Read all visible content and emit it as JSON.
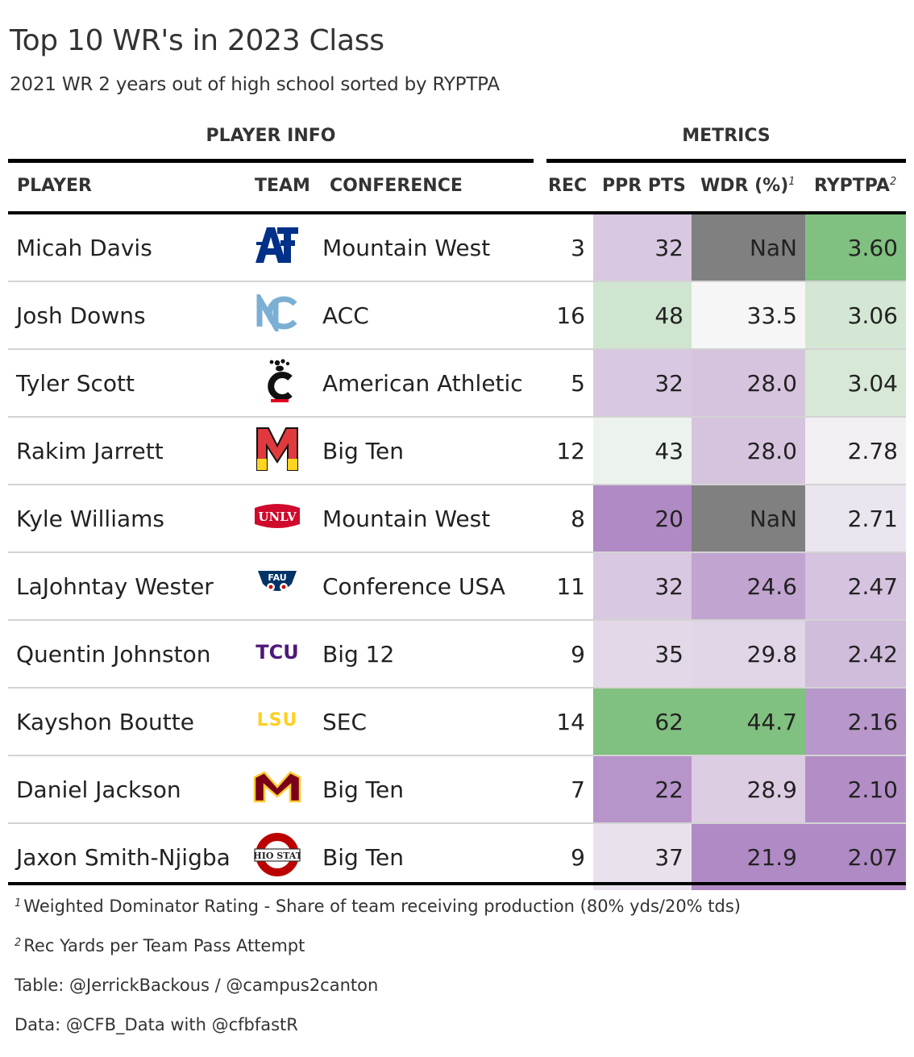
{
  "title": "Top 10 WR's in 2023 Class",
  "subtitle": "2021 WR 2 years out of high school sorted by RYPTPA",
  "spanners": {
    "player_info": "PLAYER INFO",
    "metrics": "METRICS"
  },
  "columns": {
    "player": "PLAYER",
    "team": "TEAM",
    "conference": "CONFERENCE",
    "rec": "REC",
    "ppr": "PPR PTS",
    "wdr": "WDR (%)",
    "wdr_note": "1",
    "ryptpa": "RYPTPA",
    "ryptpa_note": "2"
  },
  "colors": {
    "green_strong": "#80c080",
    "purple_strong": "#b08ac4",
    "nan": "#808080",
    "neutral": "#f7f7f7"
  },
  "chart_data": {
    "type": "table",
    "title": "Top 10 WR's in 2023 Class",
    "rows": [
      {
        "player": "Micah Davis",
        "team_logo": "air-force-logo",
        "conference": "Mountain West",
        "rec": "3",
        "ppr": "32",
        "wdr": "NaN",
        "ryptpa": "3.60"
      },
      {
        "player": "Josh Downs",
        "team_logo": "north-carolina-logo",
        "conference": "ACC",
        "rec": "16",
        "ppr": "48",
        "wdr": "33.5",
        "ryptpa": "3.06"
      },
      {
        "player": "Tyler Scott",
        "team_logo": "cincinnati-logo",
        "conference": "American Athletic",
        "rec": "5",
        "ppr": "32",
        "wdr": "28.0",
        "ryptpa": "3.04"
      },
      {
        "player": "Rakim Jarrett",
        "team_logo": "maryland-logo",
        "conference": "Big Ten",
        "rec": "12",
        "ppr": "43",
        "wdr": "28.0",
        "ryptpa": "2.78"
      },
      {
        "player": "Kyle Williams",
        "team_logo": "unlv-logo",
        "conference": "Mountain West",
        "rec": "8",
        "ppr": "20",
        "wdr": "NaN",
        "ryptpa": "2.71"
      },
      {
        "player": "LaJohntay Wester",
        "team_logo": "fau-logo",
        "conference": "Conference USA",
        "rec": "11",
        "ppr": "32",
        "wdr": "24.6",
        "ryptpa": "2.47"
      },
      {
        "player": "Quentin Johnston",
        "team_logo": "tcu-logo",
        "conference": "Big 12",
        "rec": "9",
        "ppr": "35",
        "wdr": "29.8",
        "ryptpa": "2.42"
      },
      {
        "player": "Kayshon Boutte",
        "team_logo": "lsu-logo",
        "conference": "SEC",
        "rec": "14",
        "ppr": "62",
        "wdr": "44.7",
        "ryptpa": "2.16"
      },
      {
        "player": "Daniel Jackson",
        "team_logo": "minnesota-logo",
        "conference": "Big Ten",
        "rec": "7",
        "ppr": "22",
        "wdr": "28.9",
        "ryptpa": "2.10"
      },
      {
        "player": "Jaxon Smith-Njigba",
        "team_logo": "ohio-state-logo",
        "conference": "Big Ten",
        "rec": "9",
        "ppr": "37",
        "wdr": "21.9",
        "ryptpa": "2.07"
      }
    ]
  },
  "footnotes": [
    {
      "mark": "1",
      "text": "Weighted Dominator Rating - Share of team receiving production (80% yds/20% tds)"
    },
    {
      "mark": "2",
      "text": "Rec Yards per Team Pass Attempt"
    }
  ],
  "source": {
    "table": "Table: @JerrickBackous / @campus2canton",
    "data": "Data: @CFB_Data with @cfbfastR"
  }
}
